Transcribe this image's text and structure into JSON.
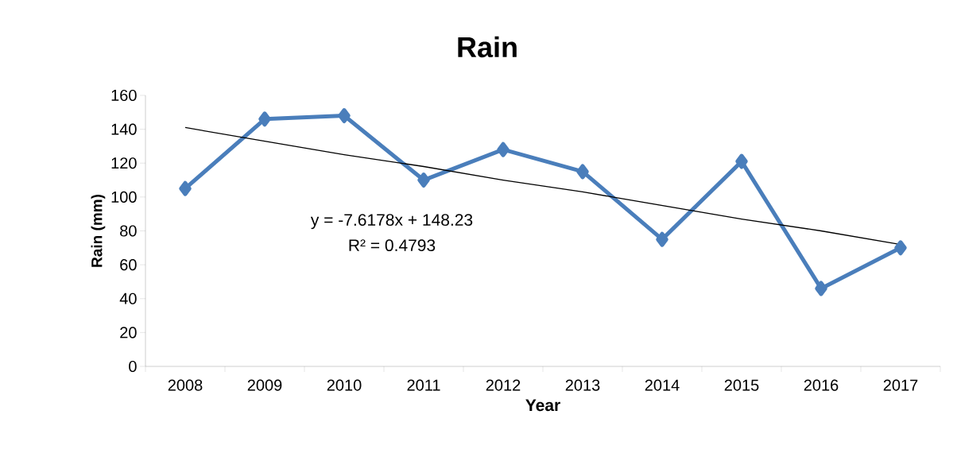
{
  "chart_data": {
    "type": "line",
    "title": "Rain",
    "xlabel": "Year",
    "ylabel": "Rain (mm)",
    "categories": [
      "2008",
      "2009",
      "2010",
      "2011",
      "2012",
      "2013",
      "2014",
      "2015",
      "2016",
      "2017"
    ],
    "series": [
      {
        "color": "#4a7ebb",
        "marker": "diamond",
        "values": [
          105,
          146,
          148,
          110,
          128,
          115,
          75,
          121,
          46,
          70
        ]
      },
      {
        "type": "line",
        "color": "#000000",
        "marker": "none",
        "values": [
          141,
          133,
          125,
          118,
          110,
          103,
          95,
          87,
          80,
          72
        ]
      }
    ],
    "ylim": [
      0,
      160
    ],
    "yticks": [
      0,
      20,
      40,
      60,
      80,
      100,
      120,
      140,
      160
    ],
    "annotations": [
      "y = -7.6178x + 148.23",
      "R² = 0.4793"
    ],
    "grid": false
  }
}
